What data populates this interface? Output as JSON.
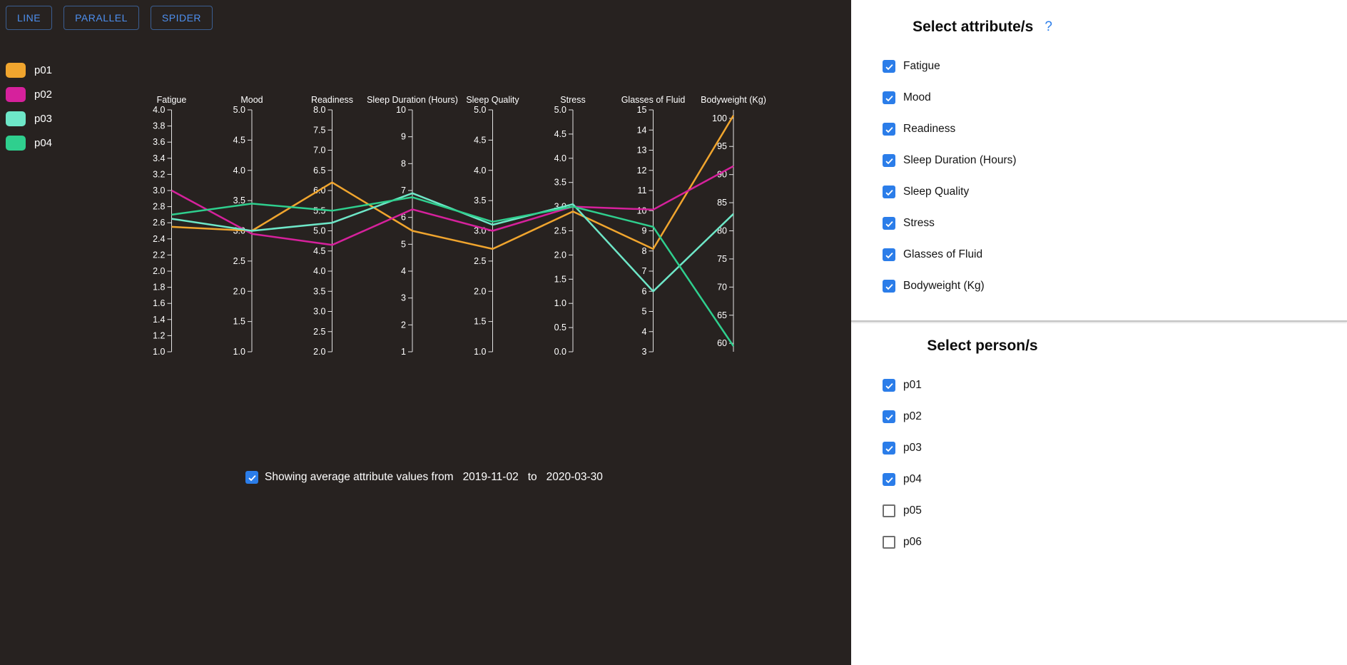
{
  "colors": {
    "background": "#272220",
    "sidebar_background": "#ffffff",
    "accent_blue": "#2b7de9",
    "axis": "#e3e3e3",
    "text_light": "#ffffff"
  },
  "toolbar": {
    "buttons": [
      {
        "label": "LINE"
      },
      {
        "label": "PARALLEL"
      },
      {
        "label": "SPIDER"
      }
    ]
  },
  "chart_data": {
    "type": "parallel-coordinates",
    "title": "",
    "axis_label_position": "top",
    "grid": false,
    "axes": [
      {
        "label": "Fatigue",
        "min": 1.0,
        "max": 4.0,
        "step": 0.2,
        "decimals": 1
      },
      {
        "label": "Mood",
        "min": 1.0,
        "max": 5.0,
        "step": 0.5,
        "decimals": 1
      },
      {
        "label": "Readiness",
        "min": 2.0,
        "max": 8.0,
        "step": 0.5,
        "decimals": 1
      },
      {
        "label": "Sleep Duration (Hours)",
        "min": 1,
        "max": 10,
        "step": 1,
        "decimals": 0
      },
      {
        "label": "Sleep Quality",
        "min": 1.0,
        "max": 5.0,
        "step": 0.5,
        "decimals": 1
      },
      {
        "label": "Stress",
        "min": 0.0,
        "max": 5.0,
        "step": 0.5,
        "decimals": 1
      },
      {
        "label": "Glasses of Fluid",
        "min": 3,
        "max": 15,
        "step": 1,
        "decimals": 0
      },
      {
        "label": "Bodyweight (Kg)",
        "min": 58.5,
        "max": 101.5,
        "step": 5,
        "decimals": 0
      }
    ],
    "series": [
      {
        "name": "p01",
        "color": "#f0a52e",
        "values": [
          2.55,
          3.0,
          6.2,
          5.5,
          2.7,
          2.9,
          8.1,
          100.5
        ]
      },
      {
        "name": "p02",
        "color": "#d6219c",
        "values": [
          3.0,
          2.95,
          4.65,
          6.3,
          3.0,
          3.0,
          10.05,
          91.5
        ]
      },
      {
        "name": "p03",
        "color": "#6ee7c8",
        "values": [
          2.65,
          3.0,
          5.2,
          6.9,
          3.1,
          3.05,
          6.0,
          83
        ]
      },
      {
        "name": "p04",
        "color": "#2fcf8e",
        "values": [
          2.7,
          3.45,
          5.5,
          6.75,
          3.15,
          3.0,
          9.2,
          59.5
        ]
      }
    ]
  },
  "footer": {
    "checkbox_checked": true,
    "text_prefix": "Showing average attribute values from",
    "from_date": "2019-11-02",
    "to_label": "to",
    "to_date": "2020-03-30"
  },
  "sidebar": {
    "attributes_title": "Select attribute/s",
    "help_icon": "?",
    "attributes": [
      {
        "label": "Fatigue",
        "checked": true
      },
      {
        "label": "Mood",
        "checked": true
      },
      {
        "label": "Readiness",
        "checked": true
      },
      {
        "label": "Sleep Duration (Hours)",
        "checked": true
      },
      {
        "label": "Sleep Quality",
        "checked": true
      },
      {
        "label": "Stress",
        "checked": true
      },
      {
        "label": "Glasses of Fluid",
        "checked": true
      },
      {
        "label": "Bodyweight (Kg)",
        "checked": true
      }
    ],
    "persons_title": "Select person/s",
    "persons": [
      {
        "label": "p01",
        "checked": true
      },
      {
        "label": "p02",
        "checked": true
      },
      {
        "label": "p03",
        "checked": true
      },
      {
        "label": "p04",
        "checked": true
      },
      {
        "label": "p05",
        "checked": false
      },
      {
        "label": "p06",
        "checked": false
      }
    ]
  }
}
